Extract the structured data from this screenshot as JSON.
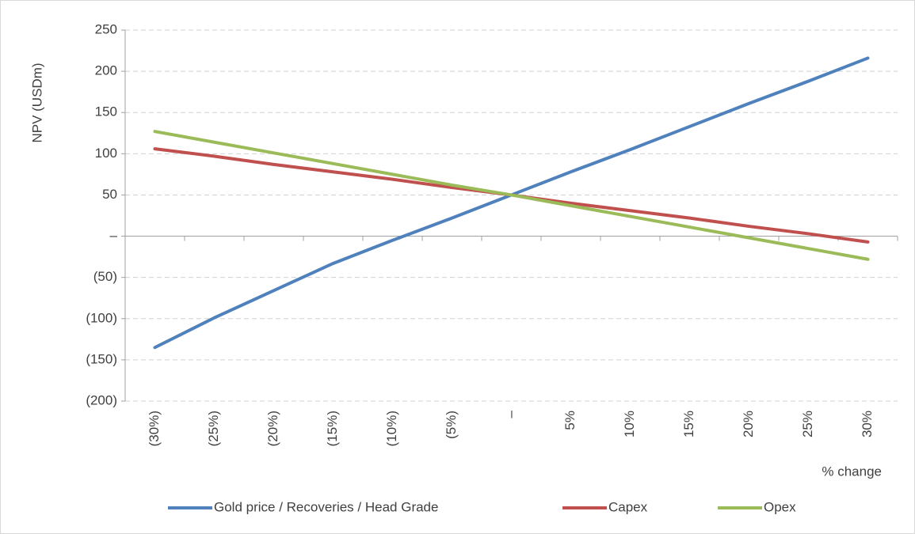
{
  "chart_data": {
    "type": "line",
    "y_label": "NPV (USDm)",
    "x_label": "% change",
    "categories": [
      "(30%)",
      "(25%)",
      "(20%)",
      "(15%)",
      "(10%)",
      "(5%)",
      "–",
      "5%",
      "10%",
      "15%",
      "20%",
      "25%",
      "30%"
    ],
    "series": [
      {
        "name": "Gold price / Recoveries / Head Grade",
        "color": "#4f81bd",
        "values": [
          -135,
          -99,
          -66,
          -33,
          -5,
          22,
          50,
          78,
          105,
          133,
          161,
          188,
          216
        ]
      },
      {
        "name": "Capex",
        "color": "#c0504d",
        "values": [
          106,
          97,
          87,
          78,
          69,
          59,
          50,
          40,
          31,
          22,
          12,
          3,
          -7
        ]
      },
      {
        "name": "Opex",
        "color": "#9bbb59",
        "values": [
          127,
          114,
          101,
          88,
          75,
          62,
          50,
          37,
          24,
          11,
          -2,
          -15,
          -28
        ]
      }
    ],
    "ylim": [
      -200,
      250
    ],
    "yticks": [
      {
        "value": -200,
        "label": "(200)"
      },
      {
        "value": -150,
        "label": "(150)"
      },
      {
        "value": -100,
        "label": "(100)"
      },
      {
        "value": -50,
        "label": "(50)"
      },
      {
        "value": 0,
        "label": "–"
      },
      50,
      100,
      150,
      200,
      250
    ],
    "grid": true,
    "legend": "bottom"
  }
}
